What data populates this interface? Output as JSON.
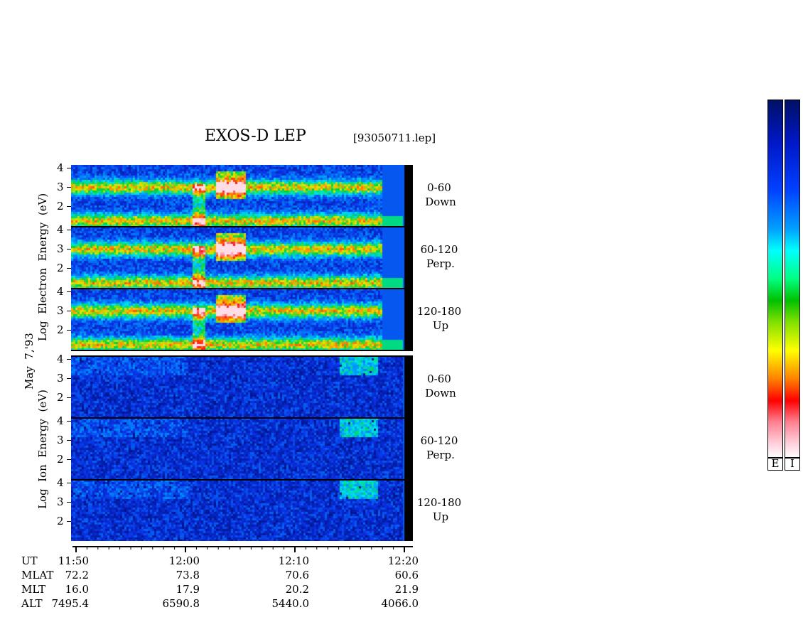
{
  "header": {
    "title": "EXOS-D LEP",
    "file": "[93050711.lep]"
  },
  "date_label": "May  7,'93",
  "electron_ylabel": "Log  Electron  Energy  (eV)",
  "ion_ylabel": "Log  Ion  Energy  (eV)",
  "y_ticks": [
    "4",
    "3",
    "2"
  ],
  "panels": [
    {
      "id": "electron-down",
      "angle": "0-60",
      "dir": "Down"
    },
    {
      "id": "electron-perp",
      "angle": "60-120",
      "dir": "Perp."
    },
    {
      "id": "electron-up",
      "angle": "120-180",
      "dir": "Up"
    },
    {
      "id": "ion-down",
      "angle": "0-60",
      "dir": "Down"
    },
    {
      "id": "ion-perp",
      "angle": "60-120",
      "dir": "Perp."
    },
    {
      "id": "ion-up",
      "angle": "120-180",
      "dir": "Up"
    }
  ],
  "time_axis": {
    "row_labels": [
      "UT",
      "MLAT",
      "MLT",
      "ALT"
    ],
    "ticks": [
      {
        "UT": "11:50",
        "MLAT": "72.2",
        "MLT": "16.0",
        "ALT": "7495.4"
      },
      {
        "UT": "12:00",
        "MLAT": "73.8",
        "MLT": "17.9",
        "ALT": "6590.8"
      },
      {
        "UT": "12:10",
        "MLAT": "70.6",
        "MLT": "20.2",
        "ALT": "5440.0"
      },
      {
        "UT": "12:20",
        "MLAT": "60.6",
        "MLT": "21.9",
        "ALT": "4066.0"
      }
    ]
  },
  "colorbars": [
    {
      "id": "electron",
      "label": "E"
    },
    {
      "id": "ion",
      "label": "I"
    }
  ],
  "colors": {
    "background": "#0a2ad8",
    "colormap": [
      "#ffffff",
      "#ff9fbf",
      "#ff0000",
      "#ff8000",
      "#ffff00",
      "#00c800",
      "#00ffff",
      "#0040ff",
      "#001080"
    ]
  },
  "chart_data": {
    "type": "heatmap",
    "title": "EXOS-D LEP",
    "xlabel": "UT",
    "x_range": [
      "11:50",
      "12:20"
    ],
    "ylabel_top": "Log Electron Energy (eV)",
    "ylabel_bottom": "Log Ion Energy (eV)",
    "ylim": [
      1,
      4
    ],
    "y_ticks": [
      2,
      3,
      4
    ],
    "x_ticks": [
      "11:50",
      "12:00",
      "12:10",
      "12:20"
    ]
  }
}
